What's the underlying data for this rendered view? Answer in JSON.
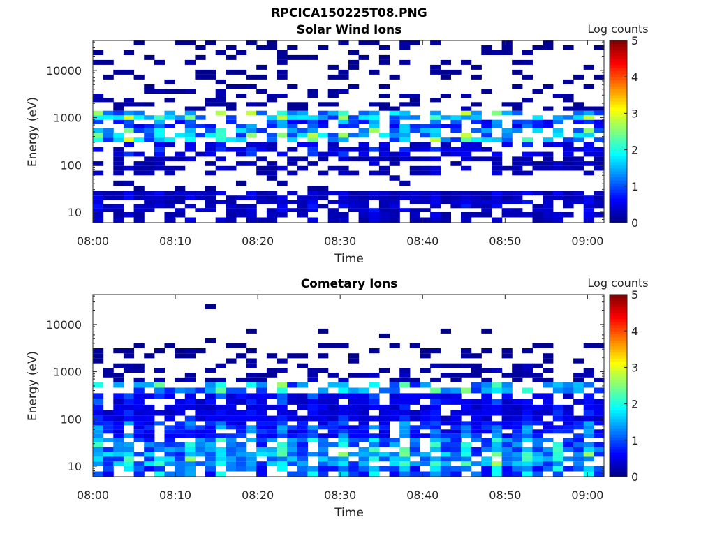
{
  "figure": {
    "title": "RPCICA150225T08.PNG",
    "colormap": "jet"
  },
  "chart_data": [
    {
      "type": "heatmap",
      "title": "Solar Wind Ions",
      "xlabel": "Time",
      "ylabel": "Energy (eV)",
      "x_ticks": [
        "08:00",
        "08:10",
        "08:20",
        "08:30",
        "08:40",
        "08:50",
        "09:00"
      ],
      "y_ticks": [
        "10",
        "100",
        "1000",
        "10000"
      ],
      "y_scale": "log",
      "xlim": [
        "08:00",
        "09:02"
      ],
      "ylim": [
        6,
        43000
      ],
      "colorbar": {
        "label": "Log counts",
        "range": [
          0,
          5
        ],
        "ticks": [
          "0",
          "1",
          "2",
          "3",
          "4",
          "5"
        ]
      },
      "bands": [
        {
          "e_lo": 6,
          "e_hi": 10,
          "level": 0.3,
          "density": 0.55
        },
        {
          "e_lo": 10,
          "e_hi": 18,
          "level": 0.4,
          "density": 0.7
        },
        {
          "e_lo": 18,
          "e_hi": 28,
          "level": 0.35,
          "density": 0.85
        },
        {
          "e_lo": 28,
          "e_hi": 60,
          "level": 0.15,
          "density": 0.1
        },
        {
          "e_lo": 60,
          "e_hi": 150,
          "level": 0.25,
          "density": 0.45
        },
        {
          "e_lo": 150,
          "e_hi": 300,
          "level": 0.5,
          "density": 0.6
        },
        {
          "e_lo": 300,
          "e_hi": 600,
          "level": 1.6,
          "density": 0.6
        },
        {
          "e_lo": 600,
          "e_hi": 900,
          "level": 0.9,
          "density": 0.55
        },
        {
          "e_lo": 900,
          "e_hi": 1400,
          "level": 1.6,
          "density": 0.65
        },
        {
          "e_lo": 1400,
          "e_hi": 4000,
          "level": 0.15,
          "density": 0.3
        },
        {
          "e_lo": 4000,
          "e_hi": 43000,
          "level": 0.1,
          "density": 0.22
        }
      ]
    },
    {
      "type": "heatmap",
      "title": "Cometary Ions",
      "xlabel": "Time",
      "ylabel": "Energy (eV)",
      "x_ticks": [
        "08:00",
        "08:10",
        "08:20",
        "08:30",
        "08:40",
        "08:50",
        "09:00"
      ],
      "y_ticks": [
        "10",
        "100",
        "1000",
        "10000"
      ],
      "y_scale": "log",
      "xlim": [
        "08:00",
        "09:02"
      ],
      "ylim": [
        6,
        43000
      ],
      "colorbar": {
        "label": "Log counts",
        "range": [
          0,
          5
        ],
        "ticks": [
          "0",
          "1",
          "2",
          "3",
          "4",
          "5"
        ]
      },
      "bands": [
        {
          "e_lo": 6,
          "e_hi": 10,
          "level": 1.1,
          "density": 0.8
        },
        {
          "e_lo": 10,
          "e_hi": 20,
          "level": 1.5,
          "density": 0.85
        },
        {
          "e_lo": 20,
          "e_hi": 40,
          "level": 1.3,
          "density": 0.8
        },
        {
          "e_lo": 40,
          "e_hi": 90,
          "level": 0.8,
          "density": 0.85
        },
        {
          "e_lo": 90,
          "e_hi": 200,
          "level": 0.5,
          "density": 0.85
        },
        {
          "e_lo": 200,
          "e_hi": 350,
          "level": 0.6,
          "density": 0.75
        },
        {
          "e_lo": 350,
          "e_hi": 600,
          "level": 1.4,
          "density": 0.55
        },
        {
          "e_lo": 600,
          "e_hi": 1500,
          "level": 0.2,
          "density": 0.35
        },
        {
          "e_lo": 1500,
          "e_hi": 4000,
          "level": 0.1,
          "density": 0.22
        },
        {
          "e_lo": 4000,
          "e_hi": 43000,
          "level": 0.05,
          "density": 0.02
        }
      ]
    }
  ]
}
